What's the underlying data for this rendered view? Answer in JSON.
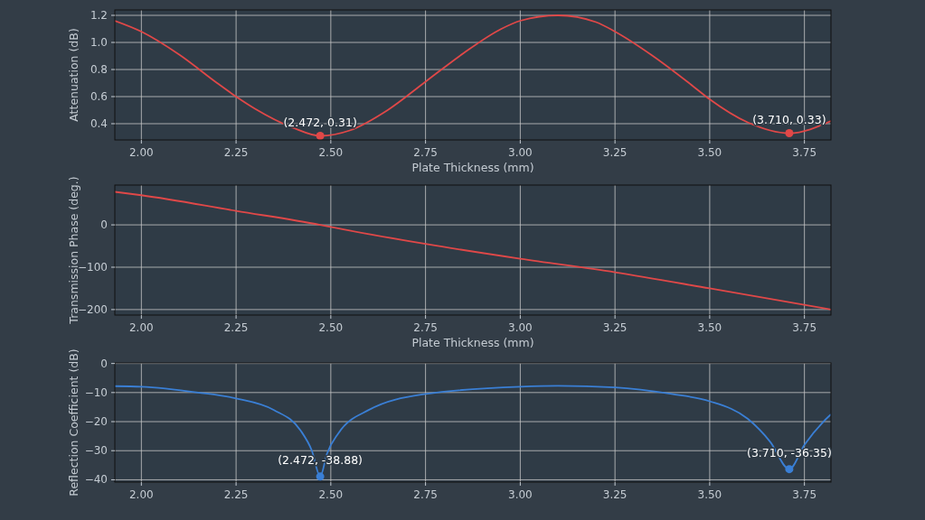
{
  "chart_data": [
    {
      "type": "line",
      "xlabel": "Plate Thickness (mm)",
      "ylabel": "Attenuation (dB)",
      "xlim": [
        1.93,
        3.82
      ],
      "xticks": [
        {
          "value": 2,
          "label": "2.00"
        },
        {
          "value": 2.25,
          "label": "2.25"
        },
        {
          "value": 2.5,
          "label": "2.50"
        },
        {
          "value": 2.75,
          "label": "2.75"
        },
        {
          "value": 3,
          "label": "3.00"
        },
        {
          "value": 3.25,
          "label": "3.25"
        },
        {
          "value": 3.5,
          "label": "3.50"
        },
        {
          "value": 3.75,
          "label": "3.75"
        }
      ],
      "ylim": [
        0.28,
        1.24
      ],
      "yticks": [
        {
          "value": 0.4,
          "label": "0.4"
        },
        {
          "value": 0.6,
          "label": "0.6"
        },
        {
          "value": 0.8,
          "label": "0.8"
        },
        {
          "value": 1,
          "label": "1.0"
        },
        {
          "value": 1.2,
          "label": "1.2"
        }
      ],
      "grid": true,
      "series": [
        {
          "type": "line",
          "color": "#e04848",
          "marker": "none",
          "x": [
            1.93,
            2.0,
            2.1,
            2.2,
            2.25,
            2.3,
            2.4,
            2.472,
            2.55,
            2.65,
            2.75,
            2.85,
            2.95,
            3.0,
            3.1,
            3.2,
            3.25,
            3.35,
            3.45,
            3.5,
            3.6,
            3.71,
            3.82
          ],
          "values": [
            1.16,
            1.08,
            0.91,
            0.7,
            0.6,
            0.51,
            0.37,
            0.31,
            0.35,
            0.5,
            0.71,
            0.92,
            1.1,
            1.16,
            1.2,
            1.15,
            1.08,
            0.9,
            0.69,
            0.58,
            0.41,
            0.33,
            0.42
          ]
        },
        {
          "type": "scatter",
          "color": "#e04848",
          "marker": "circle",
          "x": [
            2.472,
            3.71
          ],
          "values": [
            0.31,
            0.33
          ]
        }
      ],
      "annotations": [
        "(2.472, 0.31)",
        "(3.710, 0.33)"
      ]
    },
    {
      "type": "line",
      "xlabel": "Plate Thickness (mm)",
      "ylabel": "Transmission Phase (deg.)",
      "xlim": [
        1.93,
        3.82
      ],
      "xticks": [
        {
          "value": 2,
          "label": "2.00"
        },
        {
          "value": 2.25,
          "label": "2.25"
        },
        {
          "value": 2.5,
          "label": "2.50"
        },
        {
          "value": 2.75,
          "label": "2.75"
        },
        {
          "value": 3,
          "label": "3.00"
        },
        {
          "value": 3.25,
          "label": "3.25"
        },
        {
          "value": 3.5,
          "label": "3.50"
        },
        {
          "value": 3.75,
          "label": "3.75"
        }
      ],
      "ylim": [
        -213,
        94
      ],
      "yticks": [
        {
          "value": -200,
          "label": "−200"
        },
        {
          "value": -100,
          "label": "−100"
        },
        0
      ],
      "grid": true,
      "series": [
        {
          "type": "line",
          "color": "#e04848",
          "marker": "none",
          "x": [
            1.93,
            2.0,
            2.25,
            2.472,
            2.5,
            2.75,
            3.0,
            3.25,
            3.5,
            3.82
          ],
          "values": [
            78,
            70,
            33,
            0,
            -5,
            -45,
            -80,
            -112,
            -150,
            -200
          ]
        }
      ]
    },
    {
      "type": "line",
      "ylabel": "Reflection Coefficient (dB)",
      "xlim": [
        1.93,
        3.82
      ],
      "xticks": [
        {
          "value": 2,
          "label": "2.00"
        },
        {
          "value": 2.25,
          "label": "2.25"
        },
        {
          "value": 2.5,
          "label": "2.50"
        },
        {
          "value": 2.75,
          "label": "2.75"
        },
        {
          "value": 3,
          "label": "3.00"
        },
        {
          "value": 3.25,
          "label": "3.25"
        },
        {
          "value": 3.5,
          "label": "3.50"
        },
        {
          "value": 3.75,
          "label": "3.75"
        }
      ],
      "ylim": [
        -40.8,
        0.2
      ],
      "yticks": [
        {
          "value": -40,
          "label": "−40"
        },
        {
          "value": -30,
          "label": "−30"
        },
        {
          "value": -20,
          "label": "−20"
        },
        {
          "value": -10,
          "label": "−10"
        },
        0
      ],
      "grid": true,
      "series": [
        {
          "type": "line",
          "color": "#3a7fd5",
          "marker": "none",
          "x": [
            1.93,
            2.0,
            2.15,
            2.25,
            2.35,
            2.42,
            2.45,
            2.472,
            2.49,
            2.52,
            2.6,
            2.75,
            3.0,
            3.1,
            3.25,
            3.4,
            3.5,
            3.6,
            3.66,
            3.71,
            3.75,
            3.8,
            3.82
          ],
          "values": [
            -7.8,
            -8,
            -10,
            -12,
            -16,
            -23,
            -30,
            -38.88,
            -31,
            -24,
            -16,
            -10.5,
            -8,
            -7.7,
            -8.2,
            -10.5,
            -13,
            -19,
            -27,
            -36.35,
            -28,
            -20,
            -17.5
          ]
        },
        {
          "type": "scatter",
          "color": "#3a7fd5",
          "marker": "circle",
          "x": [
            2.472,
            3.71
          ],
          "values": [
            -38.88,
            -36.35
          ]
        }
      ],
      "annotations": [
        "(2.472, -38.88)",
        "(3.710, -36.35)"
      ]
    }
  ]
}
